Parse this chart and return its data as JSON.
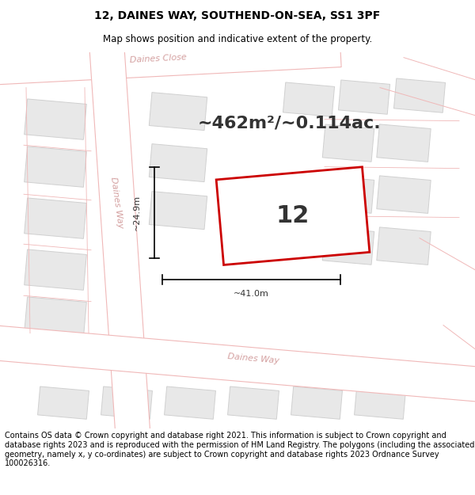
{
  "title": "12, DAINES WAY, SOUTHEND-ON-SEA, SS1 3PF",
  "subtitle": "Map shows position and indicative extent of the property.",
  "area_text": "~462m²/~0.114ac.",
  "number_label": "12",
  "dim_width": "~41.0m",
  "dim_height": "~24.9m",
  "footer_text": "Contains OS data © Crown copyright and database right 2021. This information is subject to Crown copyright and database rights 2023 and is reproduced with the permission of HM Land Registry. The polygons (including the associated geometry, namely x, y co-ordinates) are subject to Crown copyright and database rights 2023 Ordnance Survey 100026316.",
  "map_bg": "#f7f7f7",
  "road_outline": "#f0b8b8",
  "road_fill": "#ffffff",
  "building_fill": "#e8e8e8",
  "building_edge": "#d0d0d0",
  "plot_color": "#cc0000",
  "text_color": "#333333",
  "street_color": "#d4a0a0",
  "title_fontsize": 10,
  "subtitle_fontsize": 8.5,
  "area_fontsize": 16,
  "number_fontsize": 22,
  "dim_fontsize": 8,
  "footer_fontsize": 7,
  "street_fontsize": 8
}
